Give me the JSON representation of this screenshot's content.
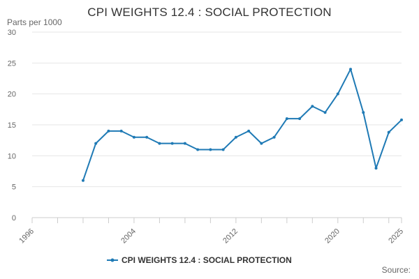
{
  "chart_data": {
    "type": "line",
    "title": "CPI WEIGHTS 12.4 : SOCIAL PROTECTION",
    "ylabel": "Parts per 1000",
    "xlabel": "",
    "source": "Source:",
    "xlim": [
      1996,
      2025
    ],
    "ylim": [
      0,
      30
    ],
    "x_ticks": [
      1996,
      2004,
      2012,
      2020,
      2025
    ],
    "y_ticks": [
      0,
      5,
      10,
      15,
      20,
      25,
      30
    ],
    "grid": true,
    "legend_position": "bottom-center",
    "series_color": "#1f7ab5",
    "series": [
      {
        "name": "CPI WEIGHTS 12.4 : SOCIAL PROTECTION",
        "x": [
          2000,
          2001,
          2002,
          2003,
          2004,
          2005,
          2006,
          2007,
          2008,
          2009,
          2010,
          2011,
          2012,
          2013,
          2014,
          2015,
          2016,
          2017,
          2018,
          2019,
          2020,
          2021,
          2022,
          2023,
          2024,
          2025
        ],
        "y": [
          6,
          12,
          14,
          14,
          13,
          13,
          12,
          12,
          12,
          11,
          11,
          11,
          13,
          14,
          12,
          13,
          16,
          16,
          18,
          17,
          20,
          24,
          17,
          8,
          13.8,
          15.8
        ]
      }
    ]
  }
}
